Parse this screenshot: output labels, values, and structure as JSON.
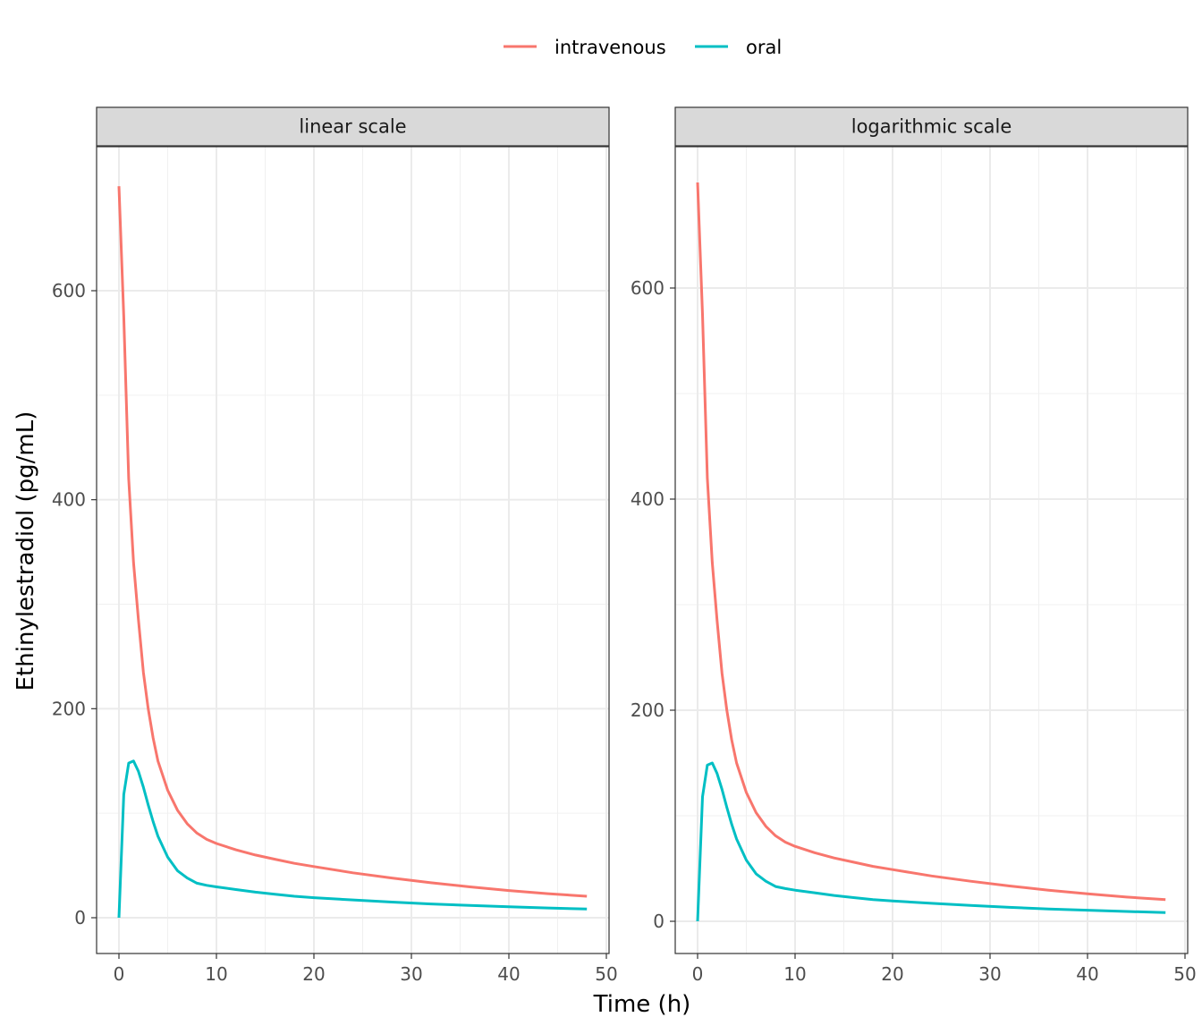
{
  "chart_data": {
    "type": "line",
    "facets": [
      "linear scale",
      "logarithmic scale"
    ],
    "xlabel": "Time (h)",
    "ylabel": "Ethinylestradiol (pg/mL)",
    "xlim": [
      0,
      48
    ],
    "ylim": [
      0,
      700
    ],
    "x_ticks": [
      0,
      10,
      20,
      30,
      40,
      50
    ],
    "y_ticks": [
      0,
      200,
      400,
      600
    ],
    "grid": true,
    "legend_position": "top",
    "x": [
      0,
      0.5,
      1,
      1.5,
      2,
      2.5,
      3,
      3.5,
      4,
      5,
      6,
      7,
      8,
      9,
      10,
      12,
      14,
      16,
      18,
      20,
      24,
      28,
      32,
      36,
      40,
      44,
      48
    ],
    "series": [
      {
        "name": "intravenous",
        "color": "#F8766D",
        "values": [
          700,
          575,
          420,
          340,
          285,
          235,
          200,
          172,
          150,
          122,
          103,
          90,
          81,
          75,
          71,
          65,
          60,
          56,
          52,
          49,
          43,
          38,
          33.5,
          29.5,
          26,
          23,
          20.5
        ]
      },
      {
        "name": "oral",
        "color": "#00BFC4",
        "values": [
          0,
          118,
          148,
          150,
          140,
          125,
          108,
          92,
          78,
          58,
          45,
          38,
          33,
          31,
          29.5,
          27,
          24.5,
          22.5,
          20.5,
          19.2,
          17,
          15,
          13.2,
          11.7,
          10.5,
          9.3,
          8.3
        ]
      }
    ]
  }
}
